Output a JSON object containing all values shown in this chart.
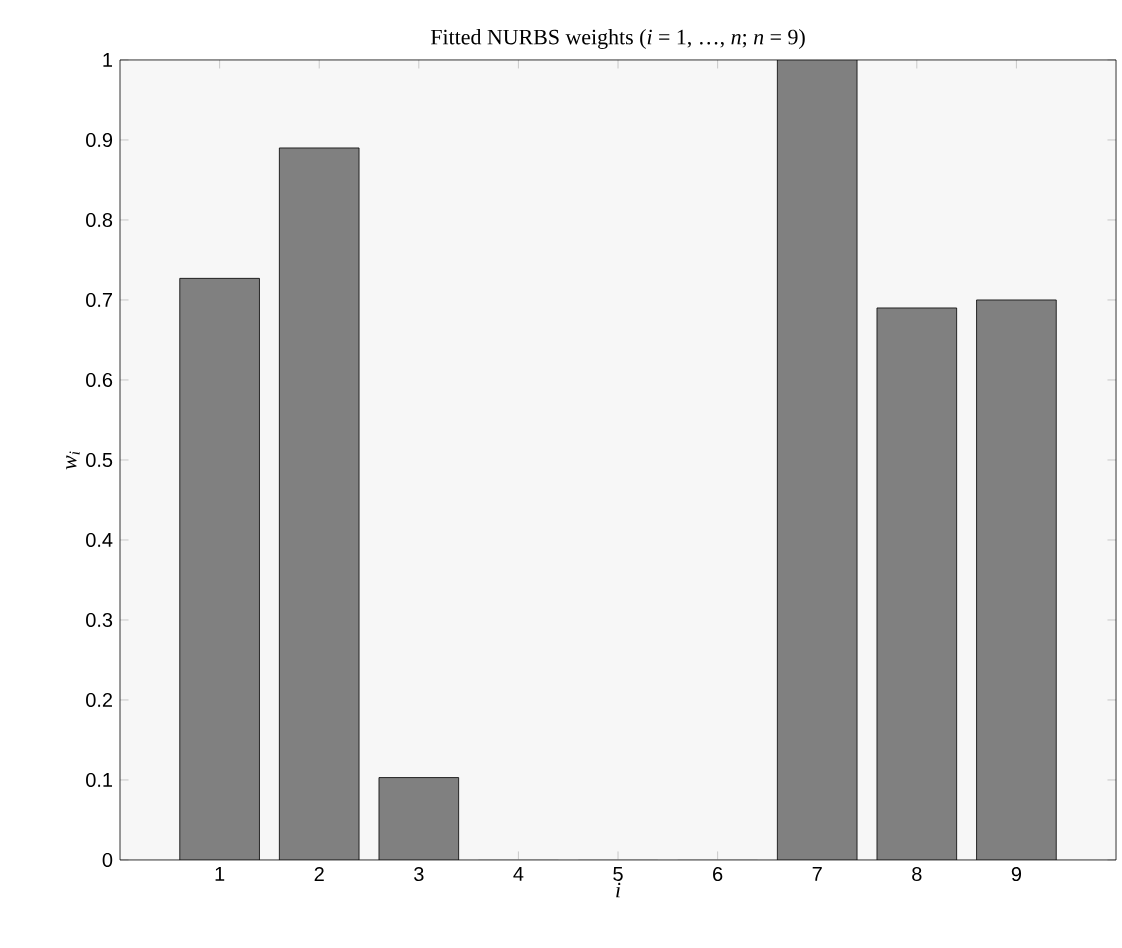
{
  "chart_data": {
    "type": "bar",
    "title": "Fitted NURBS weights (*i* = 1, …, *n*; *n* = 9)",
    "xlabel": "i",
    "ylabel": "w$_{i}$",
    "x": [
      1,
      2,
      3,
      4,
      5,
      6,
      7,
      8,
      9
    ],
    "values": [
      0.727,
      0.89,
      0.103,
      0,
      0,
      0,
      1.0,
      0.69,
      0.7
    ],
    "color": "#808080",
    "xlim": [
      0,
      10
    ],
    "xticks": [
      1,
      2,
      3,
      4,
      5,
      6,
      7,
      8,
      9
    ],
    "ylim": [
      0,
      1
    ],
    "yticks": [
      0,
      0.1,
      0.2,
      0.3,
      0.4,
      0.5,
      0.6,
      0.7,
      0.8,
      0.9,
      1
    ]
  }
}
